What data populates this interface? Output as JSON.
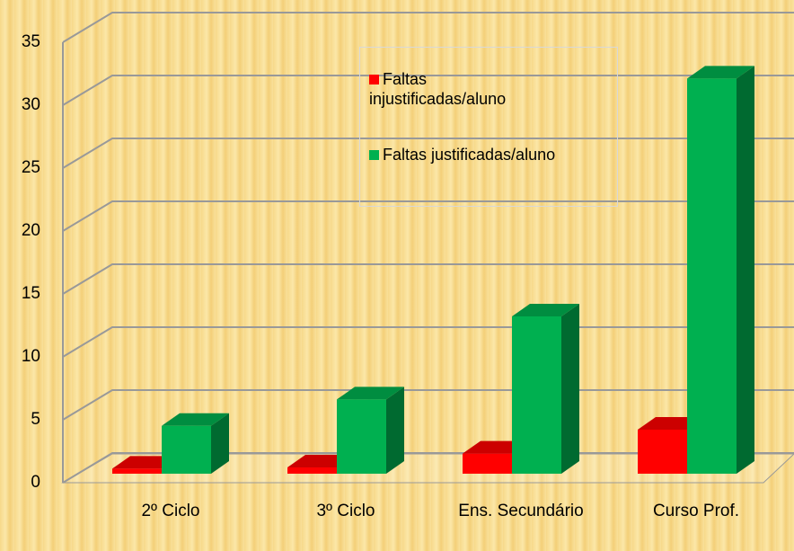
{
  "chart_data": {
    "type": "bar3d",
    "categories": [
      "2º Ciclo",
      "3º Ciclo",
      "Ens. Secundário",
      "Curso Prof."
    ],
    "series": [
      {
        "name": "Faltas injustificadas/aluno",
        "color": "#ff0000",
        "values": [
          0.4,
          0.5,
          1.6,
          3.5
        ]
      },
      {
        "name": "Faltas justificadas/aluno",
        "color": "#00b050",
        "values": [
          3.8,
          5.9,
          12.5,
          31.4
        ]
      }
    ],
    "ylim": [
      0,
      35
    ],
    "yticks": [
      0,
      5,
      10,
      15,
      20,
      25,
      30,
      35
    ],
    "grid": true
  }
}
